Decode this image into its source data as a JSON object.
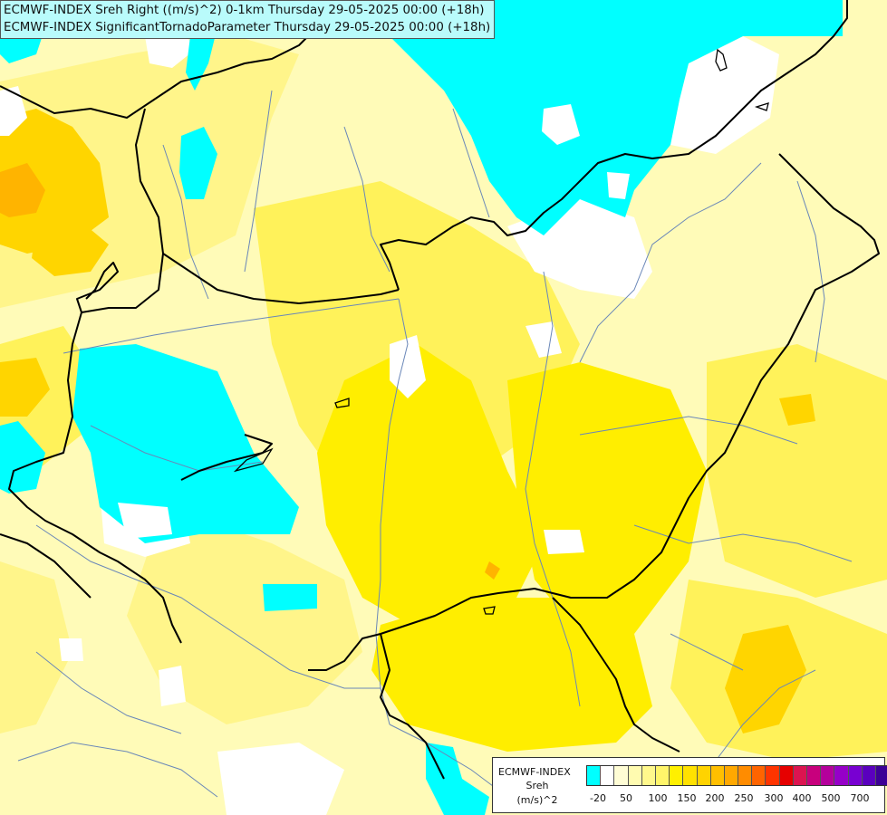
{
  "title": {
    "line1": "ECMWF-INDEX Sreh Right ((m/s)^2) 0-1km Thursday 29-05-2025 00:00 (+18h)",
    "line2": "ECMWF-INDEX SignificantTornadoParameter Thursday 29-05-2025 00:00 (+18h)"
  },
  "legend": {
    "source": "ECMWF-INDEX",
    "variable": "Sreh",
    "unit": "(m/s)^2",
    "colors": [
      "#00ffff",
      "#ffffff",
      "#fffdd5",
      "#fffbb0",
      "#fff88c",
      "#fff56a",
      "#fff000",
      "#ffe100",
      "#ffd300",
      "#ffbf00",
      "#ffa800",
      "#ff8c00",
      "#ff6400",
      "#ff3400",
      "#e60000",
      "#dc1450",
      "#c8007d",
      "#b4009b",
      "#9600c8",
      "#7800d2",
      "#5a00be",
      "#3c0096",
      "#1e006e",
      "#000064"
    ],
    "tick_labels": [
      "-20",
      "50",
      "100",
      "150",
      "200",
      "250",
      "300",
      "400",
      "500",
      "700"
    ]
  },
  "palette": {
    "cyan": "#00ffff",
    "white": "#ffffff",
    "pale": "#fffbb8",
    "light_yellow": "#fff58a",
    "yellow": "#ffee00",
    "gold": "#ffd500",
    "orange": "#ffb400"
  }
}
